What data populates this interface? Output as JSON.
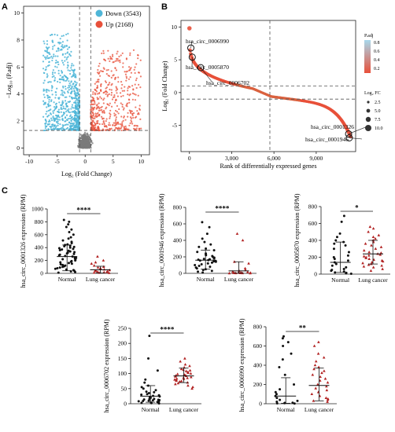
{
  "panels": {
    "a": "A",
    "b": "B",
    "c": "C"
  },
  "chart_data": [
    {
      "id": "volcano",
      "type": "scatter",
      "xlabel": "Log₂ (Fold Change)",
      "ylabel": "−Log₁₀ (P.adj)",
      "xlim": [
        -11,
        11.5
      ],
      "ylim": [
        -0.5,
        10.5
      ],
      "xticks": [
        -10,
        -5,
        0,
        5,
        10
      ],
      "yticks": [
        0,
        2,
        4,
        6,
        8,
        10
      ],
      "cutoffs": {
        "x": [
          -1,
          1
        ],
        "y": 1.3
      },
      "legend_position": "top-right",
      "series": [
        {
          "name": "Down (3543)",
          "color": "#4fb6d8"
        },
        {
          "name": "Up (2168)",
          "color": "#e8503a"
        }
      ],
      "ns_color": "#7a7a7a"
    },
    {
      "id": "rank",
      "type": "scatter",
      "xlabel": "Rank of differentially expressed genes",
      "ylabel": "Log₂ (Fold Change)",
      "xlim": [
        -600,
        11800
      ],
      "ylim": [
        -9,
        11
      ],
      "xticks": [
        0,
        3000,
        6000,
        9000
      ],
      "xtick_labels": [
        "0",
        "3,000",
        "6,000",
        "9,000"
      ],
      "yticks": [
        -5,
        0,
        5,
        10
      ],
      "cutoffs": {
        "x": 5711,
        "y": [
          1,
          -1
        ]
      },
      "legend_padj": {
        "title": "P.adj",
        "labels": [
          "0.8",
          "0.6",
          "0.4",
          "0.2"
        ],
        "colors": [
          "#a7d8ec",
          "#e8503a"
        ]
      },
      "legend_fc": {
        "title": "Log₂ FC",
        "labels": [
          "2.5",
          "5.0",
          "7.5",
          "10.0"
        ]
      },
      "annotations": [
        {
          "label": "hsa_circ_0006990",
          "x": 100,
          "y": 6.8
        },
        {
          "label": "hsa_circ_0005870",
          "x": 200,
          "y": 5.4
        },
        {
          "label": "hsa_circ_0006702",
          "x": 800,
          "y": 3.8
        },
        {
          "label": "hsa_circ_0001326",
          "x": 11300,
          "y": -6.3
        },
        {
          "label": "hsa_circ_0001946",
          "x": 11350,
          "y": -6.9
        }
      ]
    },
    {
      "id": "c1",
      "type": "scatter",
      "ylabel": "hsa_circ_0001326 expression (RPM)",
      "ylim": [
        0,
        1000
      ],
      "yticks": [
        0,
        200,
        400,
        600,
        800,
        1000
      ],
      "categories": [
        "Normal",
        "Lung cancer"
      ],
      "significance": "****",
      "series": [
        {
          "mean": 260,
          "sd_low": 40,
          "sd_high": 440,
          "color": "#111111",
          "values": [
            830,
            800,
            760,
            720,
            680,
            640,
            600,
            560,
            540,
            510,
            490,
            470,
            450,
            440,
            430,
            420,
            410,
            400,
            390,
            380,
            370,
            360,
            350,
            340,
            330,
            320,
            310,
            300,
            290,
            280,
            270,
            260,
            250,
            240,
            230,
            220,
            210,
            200,
            190,
            180,
            170,
            160,
            150,
            140,
            130,
            120,
            110,
            100,
            90,
            80,
            70,
            60,
            50,
            40,
            30,
            20,
            10
          ]
        },
        {
          "mean": 55,
          "sd_low": 5,
          "sd_high": 110,
          "color": "#b22222",
          "values": [
            260,
            200,
            170,
            150,
            120,
            100,
            90,
            80,
            70,
            60,
            50,
            40,
            35,
            30,
            25,
            20,
            15,
            10,
            8,
            5
          ]
        }
      ]
    },
    {
      "id": "c2",
      "type": "scatter",
      "ylabel": "hsa_circ_0001946 expression (RPM)",
      "ylim": [
        0,
        800
      ],
      "yticks": [
        0,
        200,
        400,
        600,
        800
      ],
      "categories": [
        "Normal",
        "Lung cancer"
      ],
      "significance": "****",
      "series": [
        {
          "mean": 160,
          "sd_low": 50,
          "sd_high": 280,
          "color": "#111111",
          "values": [
            620,
            560,
            480,
            420,
            380,
            350,
            320,
            300,
            280,
            260,
            240,
            230,
            220,
            210,
            200,
            190,
            180,
            175,
            170,
            165,
            160,
            155,
            150,
            145,
            140,
            130,
            120,
            110,
            100,
            90,
            80,
            70,
            60,
            50,
            40,
            30,
            20,
            10
          ]
        },
        {
          "mean": 30,
          "sd_low": 3,
          "sd_high": 140,
          "color": "#b22222",
          "values": [
            480,
            400,
            140,
            120,
            60,
            40,
            30,
            20,
            15,
            10,
            8,
            6,
            5,
            4,
            3,
            2,
            2,
            1,
            1
          ]
        }
      ]
    },
    {
      "id": "c3",
      "type": "scatter",
      "ylabel": "hsa_circ_0005870 expression (RPM)",
      "ylim": [
        0,
        800
      ],
      "yticks": [
        0,
        200,
        400,
        600,
        800
      ],
      "categories": [
        "Normal",
        "Lung cancer"
      ],
      "significance": "*",
      "series": [
        {
          "mean": 140,
          "sd_low": 20,
          "sd_high": 380,
          "color": "#111111",
          "values": [
            690,
            620,
            480,
            440,
            400,
            380,
            360,
            340,
            300,
            260,
            220,
            200,
            180,
            160,
            140,
            120,
            100,
            80,
            60,
            50,
            40,
            30,
            20,
            15,
            10,
            5
          ]
        },
        {
          "mean": 240,
          "sd_low": 120,
          "sd_high": 400,
          "color": "#b22222",
          "values": [
            560,
            540,
            500,
            460,
            440,
            420,
            400,
            380,
            360,
            340,
            320,
            300,
            280,
            260,
            250,
            240,
            230,
            220,
            210,
            200,
            190,
            180,
            170,
            160,
            150,
            140,
            130,
            120,
            110,
            100,
            90,
            80,
            60,
            40
          ]
        }
      ]
    },
    {
      "id": "c4",
      "type": "scatter",
      "ylabel": "hsa_circ_0006702 expression (RPM)",
      "ylim": [
        0,
        250
      ],
      "yticks": [
        0,
        50,
        100,
        150,
        200,
        250
      ],
      "categories": [
        "Normal",
        "Lung cancer"
      ],
      "significance": "****",
      "series": [
        {
          "mean": 25,
          "sd_low": 5,
          "sd_high": 60,
          "color": "#111111",
          "values": [
            225,
            150,
            110,
            80,
            70,
            60,
            55,
            50,
            45,
            40,
            38,
            35,
            32,
            30,
            28,
            26,
            24,
            22,
            20,
            18,
            16,
            15,
            14,
            13,
            12,
            11,
            10,
            9,
            8,
            7,
            6,
            5,
            4,
            3,
            2,
            1
          ]
        },
        {
          "mean": 92,
          "sd_low": 70,
          "sd_high": 118,
          "color": "#b22222",
          "values": [
            150,
            140,
            130,
            125,
            120,
            115,
            112,
            110,
            108,
            105,
            102,
            100,
            98,
            96,
            95,
            93,
            92,
            90,
            88,
            86,
            85,
            83,
            82,
            80,
            78,
            76,
            75,
            73,
            70,
            68,
            65,
            60,
            55,
            50
          ]
        }
      ]
    },
    {
      "id": "c5",
      "type": "scatter",
      "ylabel": "hsa_circ_0006990 expression (RPM)",
      "ylim": [
        0,
        800
      ],
      "yticks": [
        0,
        200,
        400,
        600,
        800
      ],
      "categories": [
        "Normal",
        "Lung cancer"
      ],
      "significance": "**",
      "series": [
        {
          "mean": 80,
          "sd_low": 5,
          "sd_high": 270,
          "color": "#111111",
          "values": [
            700,
            680,
            640,
            600,
            520,
            460,
            380,
            300,
            200,
            150,
            120,
            100,
            80,
            60,
            40,
            30,
            20,
            10,
            8,
            6,
            4,
            2
          ]
        },
        {
          "mean": 190,
          "sd_low": 30,
          "sd_high": 370,
          "color": "#b22222",
          "values": [
            640,
            600,
            520,
            480,
            440,
            400,
            380,
            360,
            340,
            320,
            300,
            280,
            260,
            240,
            220,
            200,
            180,
            160,
            140,
            120,
            100,
            80,
            60,
            50,
            40,
            30,
            20
          ]
        }
      ]
    }
  ]
}
